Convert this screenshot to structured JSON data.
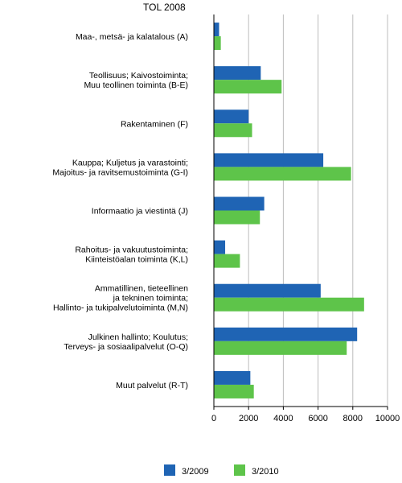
{
  "chart_data": {
    "type": "bar",
    "orientation": "horizontal",
    "title": "TOL 2008",
    "categories": [
      [
        "Maa-, metsä- ja kalatalous (A)"
      ],
      [
        "Teollisuus; Kaivostoiminta;",
        "Muu teollinen toiminta (B-E)"
      ],
      [
        "Rakentaminen (F)"
      ],
      [
        "Kauppa; Kuljetus ja varastointi;",
        "Majoitus- ja ravitsemustoiminta (G-I)"
      ],
      [
        "Informaatio ja viestintä (J)"
      ],
      [
        "Rahoitus- ja vakuutustoiminta;",
        "Kiinteistöalan toiminta (K,L)"
      ],
      [
        "Ammatillinen, tieteellinen",
        "ja tekninen toiminta;",
        "Hallinto- ja tukipalvelutoiminta (M,N)"
      ],
      [
        "Julkinen hallinto; Koulutus;",
        "Terveys- ja sosiaalipalvelut (O-Q)"
      ],
      [
        "Muut palvelut (R-T)"
      ]
    ],
    "series": [
      {
        "name": "3/2009",
        "color": "#1f64b4",
        "values": [
          300,
          2700,
          2000,
          6300,
          2900,
          650,
          6150,
          8250,
          2100
        ]
      },
      {
        "name": "3/2010",
        "color": "#5ec44a",
        "values": [
          400,
          3900,
          2200,
          7900,
          2650,
          1500,
          8650,
          7650,
          2300
        ]
      }
    ],
    "xlim": [
      0,
      10000
    ],
    "xticks": [
      0,
      2000,
      4000,
      6000,
      8000,
      10000
    ],
    "grid": true,
    "legend_position": "bottom"
  }
}
